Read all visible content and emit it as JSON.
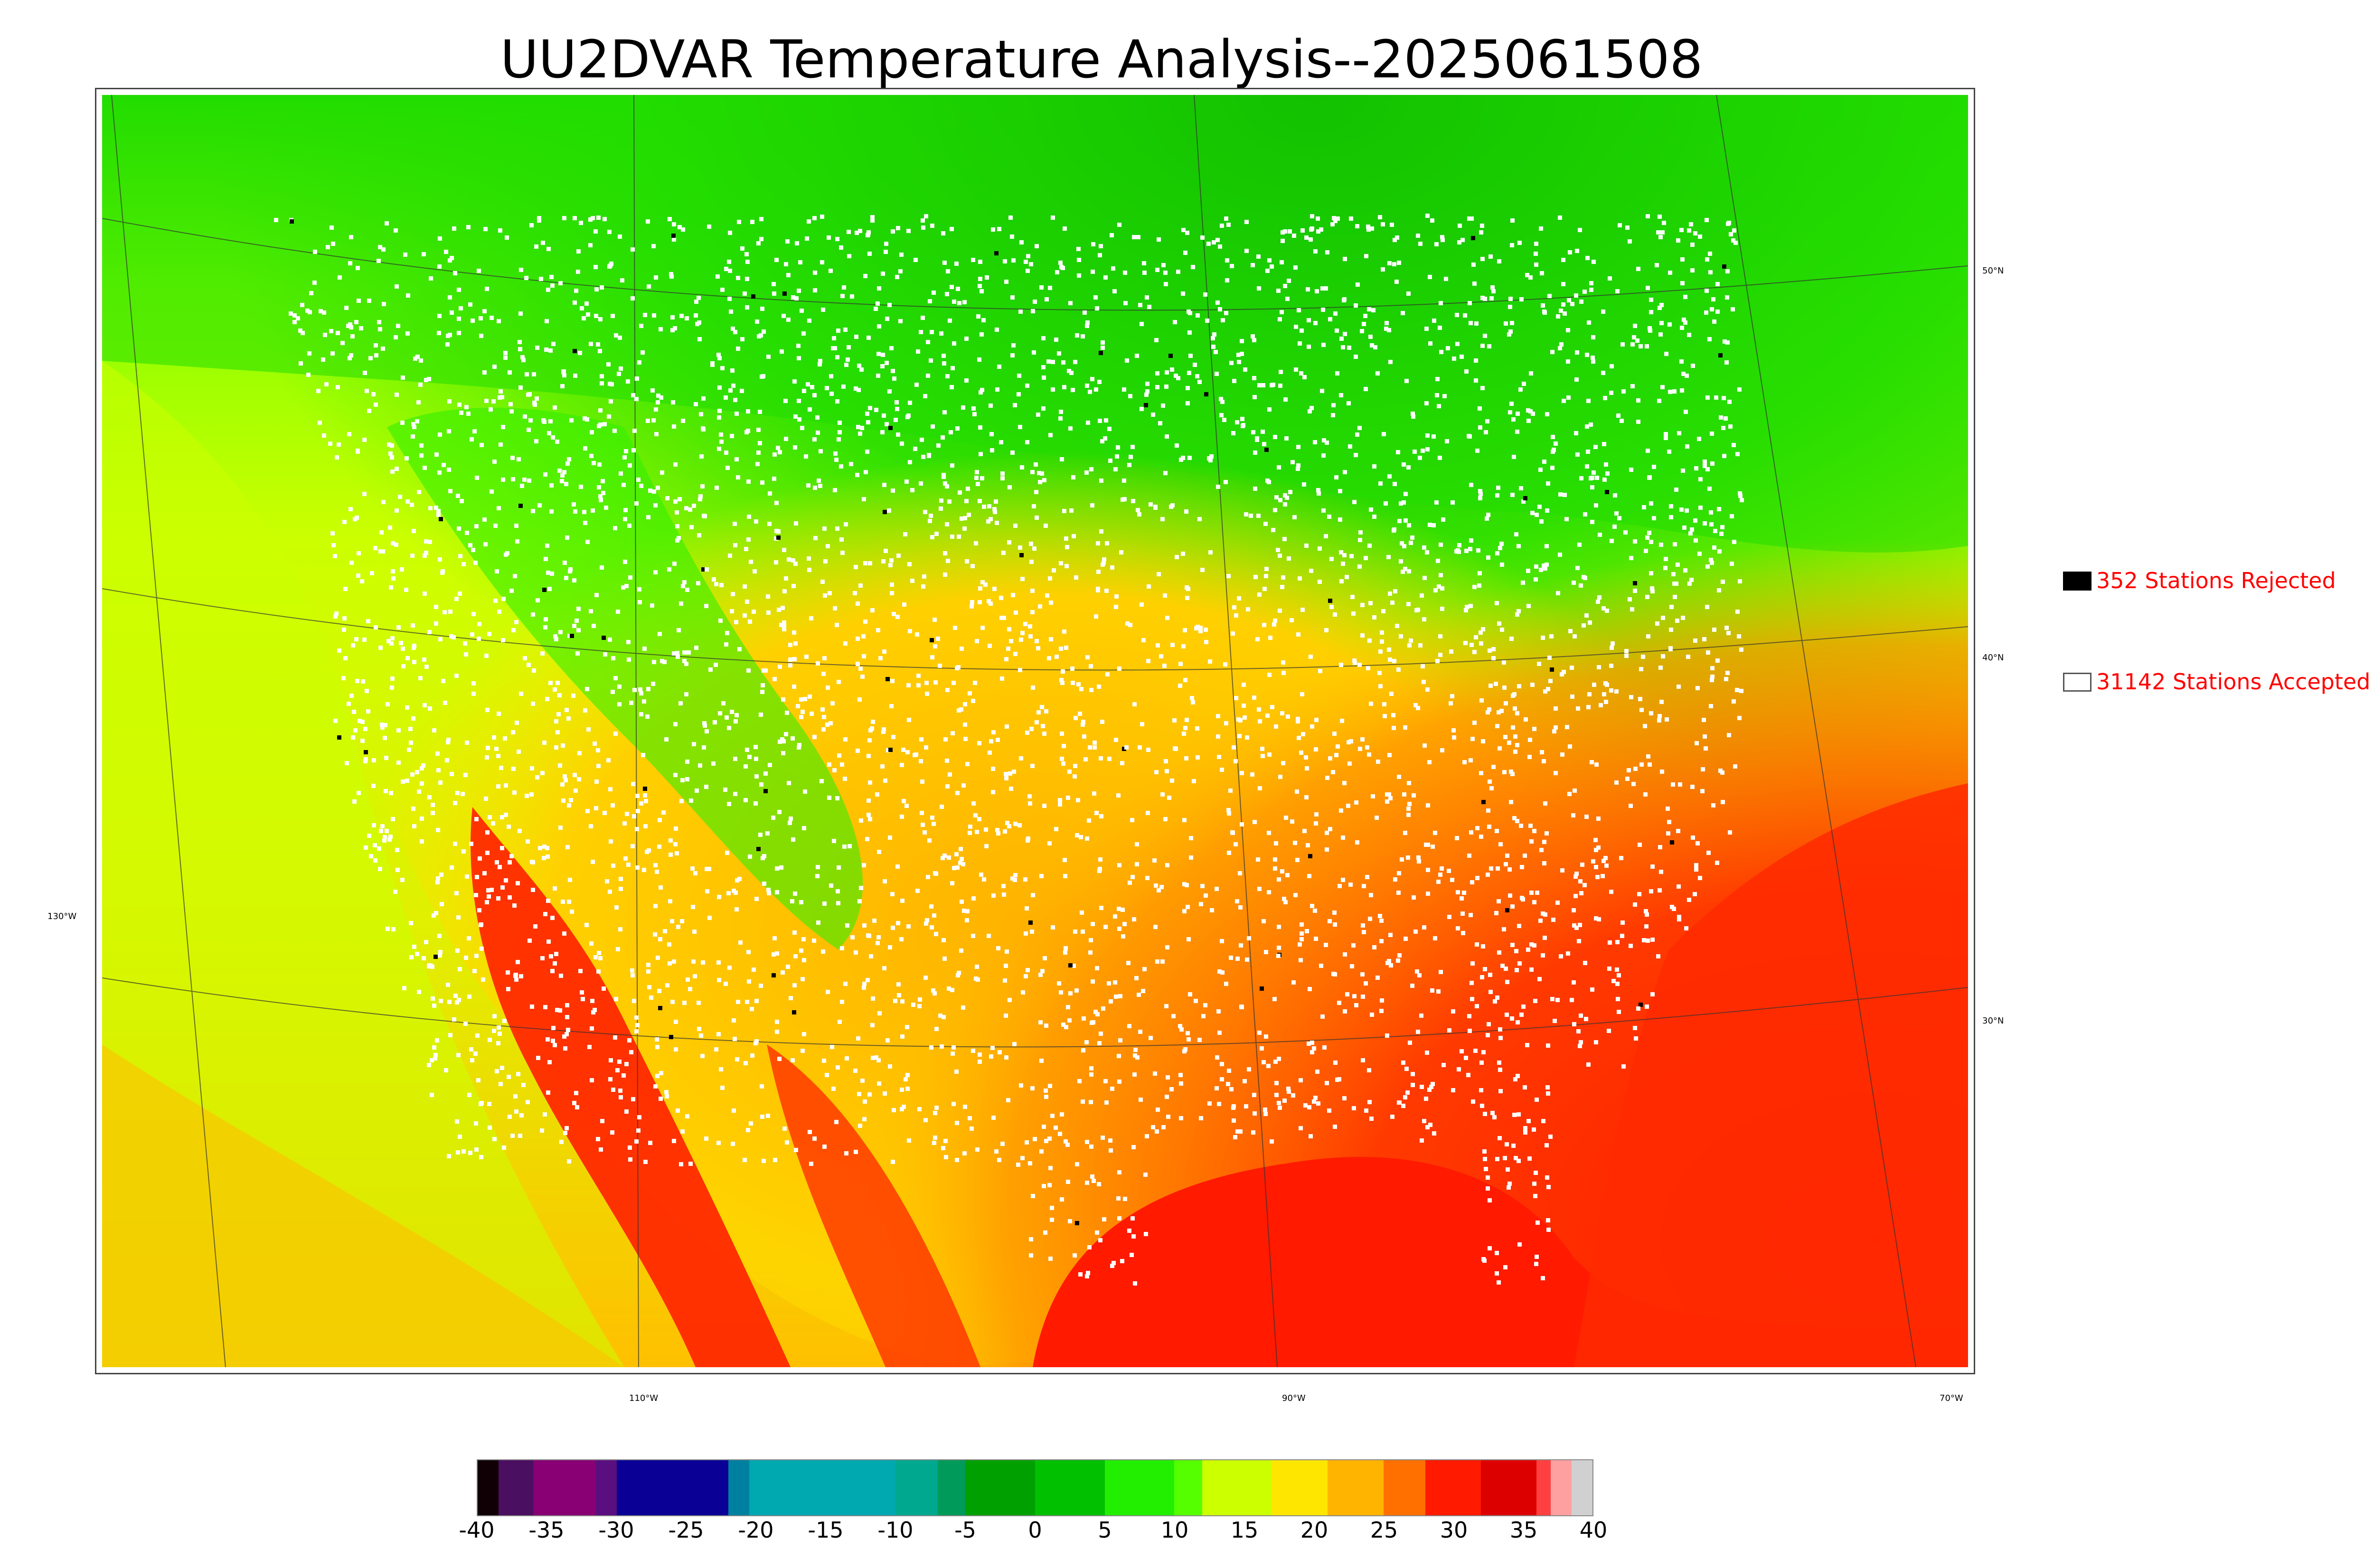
{
  "title": "UU2DVAR Temperature Analysis--2025061508",
  "map": {
    "lat_labels": [
      "50°N",
      "40°N",
      "30°N"
    ],
    "lon_labels": [
      "130°W",
      "110°W",
      "90°W",
      "70°W"
    ],
    "colors": {
      "cold_north": "#10c000",
      "cool": "#33ff00",
      "mild": "#ccff00",
      "warm": "#ffd000",
      "hot": "#ff9a00",
      "very_hot": "#ff2a00",
      "gulf": "#ff1a00",
      "station_accepted": "#ffffff",
      "station_rejected": "#000000"
    }
  },
  "legend": {
    "rejected": {
      "label": "352 Stations Rejected",
      "count": 352,
      "swatch": "#000000"
    },
    "accepted": {
      "label": "31142 Stations Accepted",
      "count": 31142,
      "swatch": "#ffffff"
    }
  },
  "colorbar": {
    "ticks": [
      "-40",
      "-35",
      "-30",
      "-25",
      "-20",
      "-15",
      "-10",
      "-5",
      "0",
      "5",
      "10",
      "15",
      "20",
      "25",
      "30",
      "35",
      "40"
    ],
    "min": -40,
    "max": 40,
    "segments": [
      {
        "from": -40,
        "to": -38.5,
        "color": "#100005"
      },
      {
        "from": -38.5,
        "to": -36,
        "color": "#4a0f60"
      },
      {
        "from": -36,
        "to": -31.5,
        "color": "#880073"
      },
      {
        "from": -31.5,
        "to": -30,
        "color": "#5a0f80"
      },
      {
        "from": -30,
        "to": -22,
        "color": "#0a0096"
      },
      {
        "from": -22,
        "to": -20.5,
        "color": "#0080a0"
      },
      {
        "from": -20.5,
        "to": -10,
        "color": "#00a8b0"
      },
      {
        "from": -10,
        "to": -7,
        "color": "#00a890"
      },
      {
        "from": -7,
        "to": -5,
        "color": "#009a5a"
      },
      {
        "from": -5,
        "to": 0,
        "color": "#00a000"
      },
      {
        "from": 0,
        "to": 5,
        "color": "#00c000"
      },
      {
        "from": 5,
        "to": 10,
        "color": "#22ee00"
      },
      {
        "from": 10,
        "to": 12,
        "color": "#55ff00"
      },
      {
        "from": 12,
        "to": 17,
        "color": "#ccff00"
      },
      {
        "from": 17,
        "to": 21,
        "color": "#ffe600"
      },
      {
        "from": 21,
        "to": 25,
        "color": "#ffb400"
      },
      {
        "from": 25,
        "to": 28,
        "color": "#ff7000"
      },
      {
        "from": 28,
        "to": 32,
        "color": "#ff1a00"
      },
      {
        "from": 32,
        "to": 36,
        "color": "#dd0000"
      },
      {
        "from": 36,
        "to": 37,
        "color": "#ff4040"
      },
      {
        "from": 37,
        "to": 38.5,
        "color": "#ffa0a0"
      },
      {
        "from": 38.5,
        "to": 40,
        "color": "#d0d0d0"
      }
    ]
  }
}
